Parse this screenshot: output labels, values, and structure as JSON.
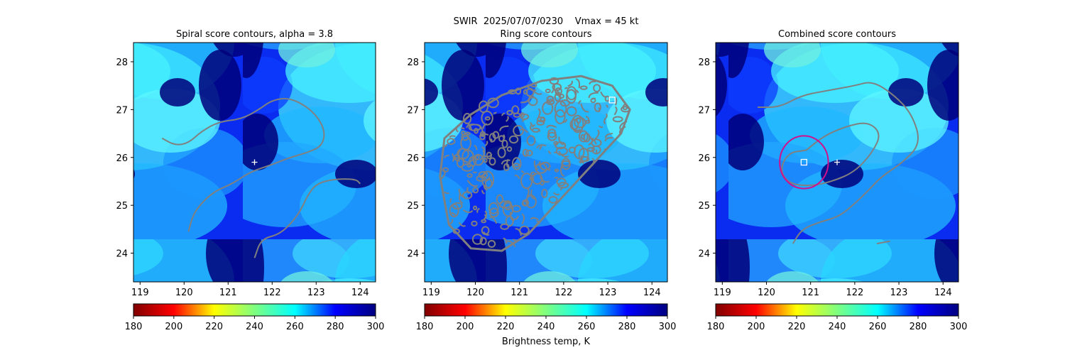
{
  "figure": {
    "suptitle": "SWIR  2025/07/07/0230    Vmax = 45 kt",
    "colorbar_label": "Brightness temp, K"
  },
  "colors": {
    "contour": "#808080",
    "marker": "#ffffff",
    "ring_circle": "#d0108c",
    "colormap": "jet_reversed"
  },
  "chart_data": [
    {
      "type": "heatmap",
      "title": "Spiral score contours, alpha =  3.8",
      "xlim": [
        118.85,
        124.35
      ],
      "ylim": [
        23.4,
        28.4
      ],
      "xticks": [
        119,
        120,
        121,
        122,
        123,
        124
      ],
      "yticks": [
        24,
        25,
        26,
        27,
        28
      ],
      "colorbar": {
        "range": [
          180,
          300
        ],
        "ticks": [
          180,
          200,
          220,
          240,
          260,
          280,
          300
        ]
      },
      "markers": [
        {
          "shape": "plus",
          "lon": 121.6,
          "lat": 25.9
        }
      ],
      "contours": [
        [
          [
            119.5,
            26.4
          ],
          [
            119.8,
            26.25
          ],
          [
            120.1,
            26.3
          ],
          [
            120.4,
            26.55
          ],
          [
            120.8,
            26.75
          ],
          [
            121.3,
            26.8
          ],
          [
            121.7,
            27.0
          ],
          [
            122.0,
            27.2
          ],
          [
            122.4,
            27.25
          ],
          [
            122.9,
            27.0
          ],
          [
            123.2,
            26.6
          ],
          [
            123.15,
            26.25
          ],
          [
            122.8,
            26.1
          ],
          [
            122.4,
            26.0
          ],
          [
            122.0,
            25.85
          ],
          [
            121.5,
            25.7
          ],
          [
            121.1,
            25.45
          ],
          [
            120.7,
            25.3
          ],
          [
            120.4,
            25.05
          ],
          [
            120.2,
            24.8
          ],
          [
            120.1,
            24.45
          ]
        ],
        [
          [
            121.6,
            23.9
          ],
          [
            121.75,
            24.3
          ],
          [
            122.2,
            24.4
          ],
          [
            122.6,
            24.8
          ],
          [
            122.8,
            25.2
          ],
          [
            123.0,
            25.45
          ],
          [
            123.4,
            25.55
          ],
          [
            123.9,
            25.55
          ],
          [
            124.0,
            25.45
          ]
        ]
      ]
    },
    {
      "type": "heatmap",
      "title": "Ring score contours",
      "xlim": [
        118.85,
        124.35
      ],
      "ylim": [
        23.4,
        28.4
      ],
      "xticks": [
        119,
        120,
        121,
        122,
        123,
        124
      ],
      "yticks": [
        24,
        25,
        26,
        27,
        28
      ],
      "colorbar": {
        "range": [
          180,
          300
        ],
        "ticks": [
          180,
          200,
          220,
          240,
          260,
          280,
          300
        ]
      },
      "markers": [
        {
          "shape": "square",
          "lon": 123.1,
          "lat": 27.2
        }
      ],
      "ring_region": {
        "outline": [
          [
            119.2,
            25.6
          ],
          [
            119.3,
            26.4
          ],
          [
            119.9,
            26.9
          ],
          [
            120.6,
            27.3
          ],
          [
            121.5,
            27.6
          ],
          [
            122.4,
            27.7
          ],
          [
            123.1,
            27.5
          ],
          [
            123.5,
            27.0
          ],
          [
            123.3,
            26.5
          ],
          [
            122.8,
            26.0
          ],
          [
            122.3,
            25.5
          ],
          [
            121.7,
            24.9
          ],
          [
            121.2,
            24.4
          ],
          [
            120.6,
            24.05
          ],
          [
            119.9,
            24.1
          ],
          [
            119.4,
            24.6
          ]
        ]
      }
    },
    {
      "type": "heatmap",
      "title": "Combined score contours",
      "xlim": [
        118.85,
        124.35
      ],
      "ylim": [
        23.4,
        28.4
      ],
      "xticks": [
        119,
        120,
        121,
        122,
        123,
        124
      ],
      "yticks": [
        24,
        25,
        26,
        27,
        28
      ],
      "colorbar": {
        "range": [
          180,
          300
        ],
        "ticks": [
          180,
          200,
          220,
          240,
          260,
          280,
          300
        ]
      },
      "markers": [
        {
          "shape": "square",
          "lon": 120.85,
          "lat": 25.9
        },
        {
          "shape": "plus",
          "lon": 121.6,
          "lat": 25.9
        }
      ],
      "circle": {
        "lon": 120.85,
        "lat": 25.9,
        "radius_deg": 0.55
      },
      "contours": [
        [
          [
            119.8,
            27.05
          ],
          [
            120.3,
            27.05
          ],
          [
            120.8,
            27.3
          ],
          [
            121.4,
            27.4
          ],
          [
            122.0,
            27.5
          ],
          [
            122.4,
            27.6
          ],
          [
            122.9,
            27.3
          ],
          [
            123.3,
            26.9
          ],
          [
            123.5,
            26.3
          ],
          [
            123.1,
            25.9
          ],
          [
            122.6,
            25.6
          ],
          [
            122.3,
            25.3
          ],
          [
            121.9,
            24.95
          ],
          [
            121.6,
            24.75
          ],
          [
            121.2,
            24.65
          ],
          [
            120.8,
            24.5
          ],
          [
            120.6,
            24.2
          ]
        ],
        [
          [
            122.5,
            24.2
          ],
          [
            122.8,
            24.25
          ]
        ],
        [
          [
            120.9,
            26.15
          ],
          [
            121.3,
            26.45
          ],
          [
            121.8,
            26.65
          ],
          [
            122.3,
            26.75
          ],
          [
            122.6,
            26.5
          ],
          [
            122.4,
            26.1
          ],
          [
            122.0,
            25.7
          ],
          [
            121.5,
            25.5
          ],
          [
            121.0,
            25.4
          ],
          [
            120.5,
            25.45
          ],
          [
            120.3,
            25.75
          ],
          [
            120.5,
            26.1
          ],
          [
            120.9,
            26.15
          ]
        ]
      ]
    }
  ]
}
